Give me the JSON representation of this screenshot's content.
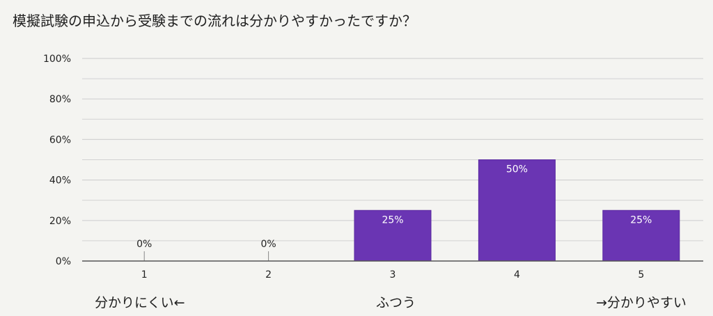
{
  "chart_data": {
    "type": "bar",
    "title": "模擬試験の申込から受験までの流れは分かりやすかったですか？",
    "categories": [
      "1",
      "2",
      "3",
      "4",
      "5"
    ],
    "values": [
      0,
      0,
      25,
      50,
      25
    ],
    "data_labels": [
      "0%",
      "0%",
      "25%",
      "50%",
      "25%"
    ],
    "ylim": [
      0,
      100
    ],
    "yticks": [
      "0%",
      "20%",
      "40%",
      "60%",
      "80%",
      "100%"
    ],
    "grid": true,
    "xlabel": "",
    "ylabel": "",
    "scale_labels": {
      "low": "分かりにくい←",
      "mid": "ふつう",
      "high": "→分かりやすい"
    }
  },
  "colors": {
    "bar": "#6a35b3",
    "bar_edge": "#5a2aa0",
    "grid": "#d2d2d2",
    "baseline": "#555555",
    "label_on_bar": "#ffffff",
    "label_off_bar": "#222222"
  }
}
